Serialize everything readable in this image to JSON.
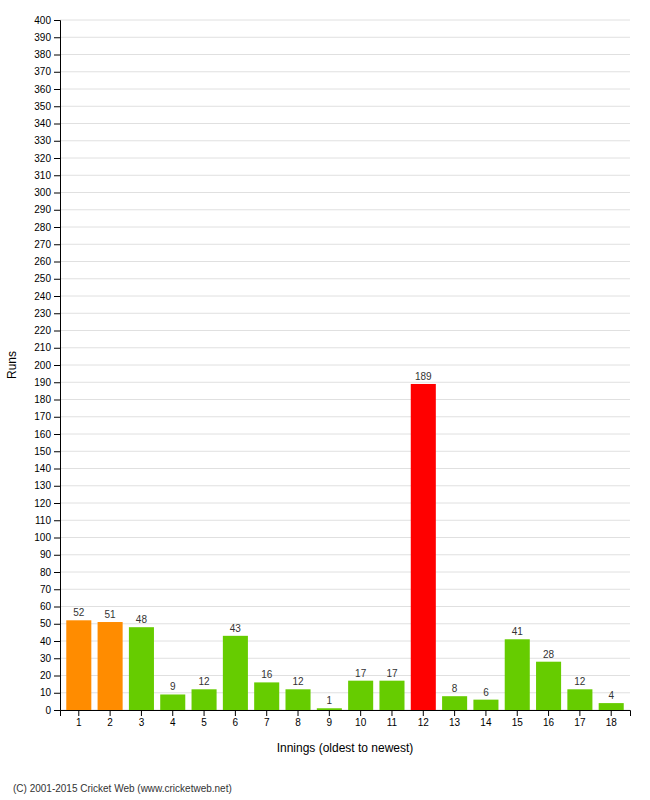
{
  "chart_data": {
    "type": "bar",
    "xlabel": "Innings (oldest to newest)",
    "ylabel": "Runs",
    "categories": [
      1,
      2,
      3,
      4,
      5,
      6,
      7,
      8,
      9,
      10,
      11,
      12,
      13,
      14,
      15,
      16,
      17,
      18
    ],
    "values": [
      52,
      51,
      48,
      9,
      12,
      43,
      16,
      12,
      1,
      17,
      17,
      189,
      8,
      6,
      41,
      28,
      12,
      4
    ],
    "colors": [
      "#ff8c00",
      "#ff8c00",
      "#66cc00",
      "#66cc00",
      "#66cc00",
      "#66cc00",
      "#66cc00",
      "#66cc00",
      "#66cc00",
      "#66cc00",
      "#66cc00",
      "#ff0000",
      "#66cc00",
      "#66cc00",
      "#66cc00",
      "#66cc00",
      "#66cc00",
      "#66cc00"
    ],
    "ylim": [
      0,
      400
    ],
    "yticks": [
      0,
      10,
      20,
      30,
      40,
      50,
      60,
      70,
      80,
      90,
      100,
      110,
      120,
      130,
      140,
      150,
      160,
      170,
      180,
      190,
      200,
      210,
      220,
      230,
      240,
      250,
      260,
      270,
      280,
      290,
      300,
      310,
      320,
      330,
      340,
      350,
      360,
      370,
      380,
      390,
      400
    ],
    "grid": true,
    "data_labels": true,
    "annotations": [
      "(C) 2001-2015 Cricket Web (www.cricketweb.net)"
    ]
  }
}
